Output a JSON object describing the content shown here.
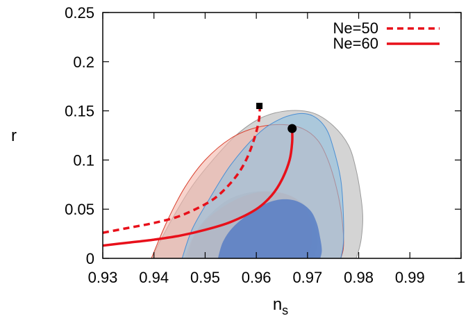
{
  "chart_data": {
    "type": "scatter",
    "xlabel": "n",
    "xlabel_sub": "s",
    "ylabel": "r",
    "xlim": [
      0.93,
      1.0
    ],
    "ylim": [
      0,
      0.25
    ],
    "xticks": [
      "0.93",
      "0.94",
      "0.95",
      "0.96",
      "0.97",
      "0.98",
      "0.99",
      "1"
    ],
    "yticks": [
      "0",
      "0.05",
      "0.1",
      "0.15",
      "0.2",
      "0.25"
    ],
    "grid": false,
    "legend_position": "top-right",
    "series": [
      {
        "name": "Ne=50",
        "style": "dashed",
        "color": "#e8101a",
        "x": [
          0.93,
          0.935,
          0.94,
          0.945,
          0.95,
          0.953,
          0.956,
          0.958,
          0.9595,
          0.9605,
          0.9607
        ],
        "y": [
          0.026,
          0.031,
          0.036,
          0.043,
          0.055,
          0.066,
          0.083,
          0.1,
          0.12,
          0.14,
          0.155
        ],
        "endpoint_marker": {
          "shape": "square",
          "x": 0.9606,
          "y": 0.155
        }
      },
      {
        "name": "Ne=60",
        "style": "solid",
        "color": "#e8101a",
        "x": [
          0.93,
          0.935,
          0.94,
          0.945,
          0.95,
          0.955,
          0.96,
          0.963,
          0.965,
          0.9665,
          0.967,
          0.967
        ],
        "y": [
          0.013,
          0.016,
          0.019,
          0.023,
          0.029,
          0.037,
          0.05,
          0.064,
          0.08,
          0.1,
          0.118,
          0.132
        ],
        "endpoint_marker": {
          "shape": "circle",
          "x": 0.967,
          "y": 0.132
        }
      }
    ],
    "contours": [
      {
        "group": "grey",
        "level": "95%",
        "color": "#b8b8b8",
        "x": [
          0.9395,
          0.943,
          0.947,
          0.951,
          0.956,
          0.961,
          0.966,
          0.971,
          0.975,
          0.978,
          0.9795,
          0.9805,
          0.9808,
          0.9805,
          0.98,
          0.9795
        ],
        "y": [
          0.0,
          0.035,
          0.07,
          0.097,
          0.125,
          0.143,
          0.15,
          0.148,
          0.135,
          0.115,
          0.09,
          0.06,
          0.04,
          0.02,
          0.008,
          0.0
        ]
      },
      {
        "group": "grey",
        "level": "68%",
        "color": "#a0a0a0",
        "x": [
          0.9465,
          0.948,
          0.951,
          0.955,
          0.96,
          0.965,
          0.968,
          0.9705,
          0.9715,
          0.972,
          0.9715,
          0.971
        ],
        "y": [
          0.0,
          0.025,
          0.045,
          0.061,
          0.068,
          0.066,
          0.06,
          0.048,
          0.032,
          0.016,
          0.005,
          0.0
        ]
      },
      {
        "group": "red",
        "level": "95%",
        "color": "#f3b5aa",
        "x": [
          0.9395,
          0.9425,
          0.946,
          0.95,
          0.955,
          0.96,
          0.965,
          0.969,
          0.972,
          0.974,
          0.9755,
          0.9765,
          0.977,
          0.977,
          0.9765
        ],
        "y": [
          0.0,
          0.037,
          0.072,
          0.1,
          0.122,
          0.133,
          0.136,
          0.132,
          0.12,
          0.1,
          0.075,
          0.05,
          0.025,
          0.01,
          0.0
        ]
      },
      {
        "group": "red",
        "level": "68%",
        "color": "#eea496",
        "x": [
          0.946,
          0.9475,
          0.95,
          0.954,
          0.958,
          0.962,
          0.966,
          0.969,
          0.9705,
          0.971,
          0.9705,
          0.97
        ],
        "y": [
          0.0,
          0.02,
          0.038,
          0.054,
          0.064,
          0.068,
          0.065,
          0.055,
          0.04,
          0.022,
          0.008,
          0.0
        ]
      },
      {
        "group": "blue",
        "level": "95%",
        "color": "#8fbfe0",
        "x": [
          0.9455,
          0.9475,
          0.951,
          0.955,
          0.96,
          0.964,
          0.968,
          0.971,
          0.9735,
          0.975,
          0.9765,
          0.977,
          0.977,
          0.9765
        ],
        "y": [
          0.0,
          0.03,
          0.062,
          0.095,
          0.125,
          0.14,
          0.147,
          0.145,
          0.133,
          0.113,
          0.08,
          0.045,
          0.015,
          0.0
        ]
      },
      {
        "group": "blue",
        "level": "68%",
        "color": "#4f78c4",
        "x": [
          0.9525,
          0.9535,
          0.9555,
          0.959,
          0.962,
          0.965,
          0.968,
          0.9705,
          0.9718,
          0.9725,
          0.9728,
          0.9725
        ],
        "y": [
          0.0,
          0.017,
          0.032,
          0.047,
          0.056,
          0.06,
          0.058,
          0.049,
          0.036,
          0.02,
          0.008,
          0.0
        ]
      }
    ]
  }
}
